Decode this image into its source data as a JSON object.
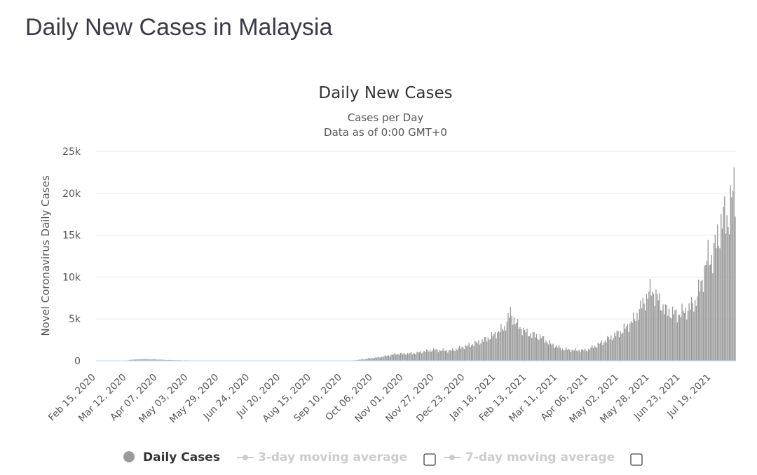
{
  "page": {
    "title": "Daily New Cases in Malaysia"
  },
  "colors": {
    "bar": "#9a9a9a",
    "grid": "#e6e6e6",
    "axis": "#c8d7e6",
    "legend_active": "#333333",
    "legend_inactive": "#cccccc"
  },
  "legend": {
    "items": [
      {
        "label": "Daily Cases",
        "active": true
      },
      {
        "label": "3-day moving average",
        "active": false
      },
      {
        "label": "7-day moving average",
        "active": false
      }
    ]
  },
  "chart_data": {
    "type": "bar",
    "title": "Daily New Cases",
    "subtitle_lines": [
      "Cases per Day",
      "Data as of 0:00 GMT+0"
    ],
    "ylabel": "Novel Coronavirus Daily Cases",
    "xlabel": "",
    "ylim": [
      0,
      25000
    ],
    "grid": true,
    "legend_position": "bottom",
    "y_ticks": [
      "0",
      "5k",
      "10k",
      "15k",
      "20k",
      "25k"
    ],
    "x_start": "2020-02-15",
    "x_end": "2021-08-08",
    "x_tick_labels": [
      "Feb 15, 2020",
      "Mar 12, 2020",
      "Apr 07, 2020",
      "May 03, 2020",
      "May 29, 2020",
      "Jun 24, 2020",
      "Jul 20, 2020",
      "Aug 15, 2020",
      "Sep 10, 2020",
      "Oct 06, 2020",
      "Nov 01, 2020",
      "Nov 27, 2020",
      "Dec 23, 2020",
      "Jan 18, 2021",
      "Feb 13, 2021",
      "Mar 11, 2021",
      "Apr 06, 2021",
      "May 02, 2021",
      "May 28, 2021",
      "Jun 23, 2021",
      "Jul 19, 2021"
    ],
    "series": [
      {
        "name": "Daily Cases",
        "points": [
          [
            "2020-02-15",
            0
          ],
          [
            "2020-03-10",
            10
          ],
          [
            "2020-03-17",
            150
          ],
          [
            "2020-03-26",
            200
          ],
          [
            "2020-04-05",
            170
          ],
          [
            "2020-04-15",
            90
          ],
          [
            "2020-05-01",
            50
          ],
          [
            "2020-05-20",
            30
          ],
          [
            "2020-06-05",
            40
          ],
          [
            "2020-06-10",
            30
          ],
          [
            "2020-07-01",
            5
          ],
          [
            "2020-08-01",
            10
          ],
          [
            "2020-09-01",
            10
          ],
          [
            "2020-09-20",
            50
          ],
          [
            "2020-10-01",
            250
          ],
          [
            "2020-10-10",
            400
          ],
          [
            "2020-10-25",
            800
          ],
          [
            "2020-11-10",
            900
          ],
          [
            "2020-11-25",
            1300
          ],
          [
            "2020-12-10",
            1200
          ],
          [
            "2020-12-25",
            1800
          ],
          [
            "2021-01-05",
            2300
          ],
          [
            "2021-01-15",
            3000
          ],
          [
            "2021-01-25",
            4000
          ],
          [
            "2021-01-30",
            5700
          ],
          [
            "2021-02-05",
            4200
          ],
          [
            "2021-02-13",
            3300
          ],
          [
            "2021-02-25",
            2800
          ],
          [
            "2021-03-05",
            2000
          ],
          [
            "2021-03-15",
            1400
          ],
          [
            "2021-03-25",
            1250
          ],
          [
            "2021-04-05",
            1300
          ],
          [
            "2021-04-15",
            2000
          ],
          [
            "2021-04-25",
            2800
          ],
          [
            "2021-05-05",
            3600
          ],
          [
            "2021-05-15",
            5000
          ],
          [
            "2021-05-22",
            6800
          ],
          [
            "2021-05-29",
            8500
          ],
          [
            "2021-06-03",
            7500
          ],
          [
            "2021-06-10",
            6000
          ],
          [
            "2021-06-20",
            5500
          ],
          [
            "2021-06-28",
            6000
          ],
          [
            "2021-07-05",
            7000
          ],
          [
            "2021-07-10",
            9000
          ],
          [
            "2021-07-15",
            12000
          ],
          [
            "2021-07-20",
            12500
          ],
          [
            "2021-07-25",
            15000
          ],
          [
            "2021-07-28",
            17000
          ],
          [
            "2021-08-02",
            17000
          ],
          [
            "2021-08-07",
            20500
          ]
        ]
      }
    ]
  }
}
